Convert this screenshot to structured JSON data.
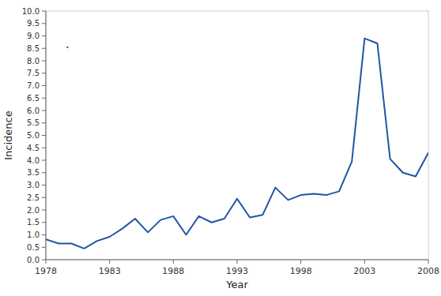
{
  "chart_data": {
    "type": "line",
    "x": [
      1978,
      1979,
      1980,
      1981,
      1982,
      1983,
      1984,
      1985,
      1986,
      1987,
      1988,
      1989,
      1990,
      1991,
      1992,
      1993,
      1994,
      1995,
      1996,
      1997,
      1998,
      1999,
      2000,
      2001,
      2002,
      2003,
      2004,
      2005,
      2006,
      2007,
      2008
    ],
    "values": [
      0.82,
      0.65,
      0.65,
      0.45,
      0.75,
      0.92,
      1.25,
      1.65,
      1.1,
      1.6,
      1.75,
      1.0,
      1.75,
      1.5,
      1.65,
      2.45,
      1.7,
      1.8,
      2.9,
      2.4,
      2.6,
      2.65,
      2.6,
      2.75,
      3.95,
      8.9,
      8.7,
      4.05,
      3.5,
      3.35,
      4.3
    ],
    "color": "#2255a4",
    "x_label": "Year",
    "y_label": "Incidence",
    "xlim": [
      1978,
      2008
    ],
    "ylim": [
      0.0,
      10.0
    ],
    "xticks": [
      1978,
      1983,
      1988,
      1993,
      1998,
      2003,
      2008
    ],
    "yticks": [
      {
        "value": 0,
        "label": "0.0"
      },
      0.5,
      {
        "value": 1,
        "label": "1.0"
      },
      1.5,
      {
        "value": 2,
        "label": "2.0"
      },
      2.5,
      {
        "value": 3,
        "label": "3.0"
      },
      3.5,
      {
        "value": 4,
        "label": "4.0"
      },
      4.5,
      {
        "value": 5,
        "label": "5.0"
      },
      5.5,
      {
        "value": 6,
        "label": "6.0"
      },
      6.5,
      {
        "value": 7,
        "label": "7.0"
      },
      7.5,
      {
        "value": 8,
        "label": "8.0"
      },
      8.5,
      {
        "value": 9,
        "label": "9.0"
      },
      9.5,
      {
        "value": 10,
        "label": "10.0"
      }
    ],
    "annotations": [
      {
        "text": "·",
        "x": 1979.7,
        "y": 8.55
      }
    ],
    "grid": false
  }
}
